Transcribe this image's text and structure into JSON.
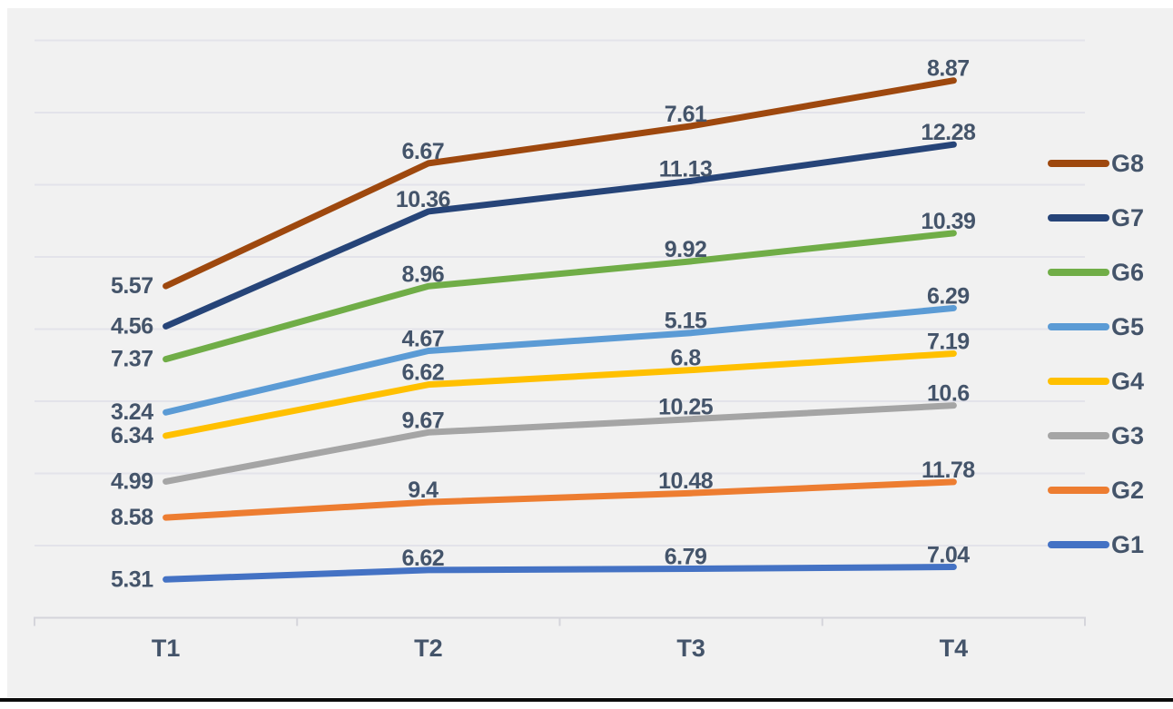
{
  "page": {
    "background_color": "#ffffff",
    "bottom_rule_color": "#0b0b0b"
  },
  "chart": {
    "background_color": "#f1f1f1",
    "gridline_color": "#e3e3ea",
    "axis_line_color": "#d5d5db",
    "text_color": "#44546a"
  },
  "chart_data": {
    "type": "line",
    "stacked": true,
    "title": "",
    "xlabel": "",
    "ylabel": "",
    "categories": [
      "T1",
      "T2",
      "T3",
      "T4"
    ],
    "series": [
      {
        "name": "G1",
        "color": "#4472C4",
        "values": [
          5.31,
          6.62,
          6.79,
          7.04
        ]
      },
      {
        "name": "G2",
        "color": "#ED7D31",
        "values": [
          8.58,
          9.4,
          10.48,
          11.78
        ]
      },
      {
        "name": "G3",
        "color": "#A5A5A5",
        "values": [
          4.99,
          9.67,
          10.25,
          10.6
        ]
      },
      {
        "name": "G4",
        "color": "#FFC000",
        "values": [
          6.34,
          6.62,
          6.8,
          7.19
        ]
      },
      {
        "name": "G5",
        "color": "#5B9BD5",
        "values": [
          3.24,
          4.67,
          5.15,
          6.29
        ]
      },
      {
        "name": "G6",
        "color": "#70AD47",
        "values": [
          7.37,
          8.96,
          9.92,
          10.39
        ]
      },
      {
        "name": "G7",
        "color": "#264478",
        "values": [
          4.56,
          10.36,
          11.13,
          12.28
        ]
      },
      {
        "name": "G8",
        "color": "#9E480E",
        "values": [
          5.57,
          6.67,
          7.61,
          8.87
        ]
      }
    ],
    "legend": {
      "position": "right",
      "entries_top_to_bottom": [
        "G8",
        "G7",
        "G6",
        "G5",
        "G4",
        "G3",
        "G2",
        "G1"
      ]
    },
    "y_axis": {
      "min": 0,
      "max": 80,
      "gridline_step": 10,
      "tick_labels_visible": false
    },
    "grid": true,
    "data_labels_visible": true
  }
}
